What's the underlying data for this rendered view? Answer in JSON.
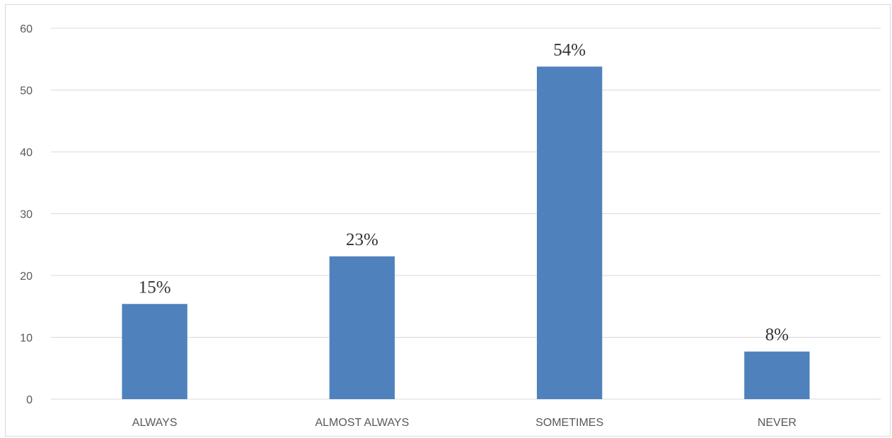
{
  "chart_data": {
    "type": "bar",
    "title": "",
    "xlabel": "",
    "ylabel": "",
    "categories": [
      "ALWAYS",
      "ALMOST ALWAYS",
      "SOMETIMES",
      "NEVER"
    ],
    "values": [
      15.4,
      23.1,
      53.8,
      7.7
    ],
    "data_labels": [
      "15%",
      "23%",
      "54%",
      "8%"
    ],
    "ylim": [
      0,
      60
    ],
    "y_ticks": [
      0,
      10,
      20,
      30,
      40,
      50,
      60
    ],
    "grid": true,
    "legend": "none",
    "bar_color": "#4f81bd"
  }
}
